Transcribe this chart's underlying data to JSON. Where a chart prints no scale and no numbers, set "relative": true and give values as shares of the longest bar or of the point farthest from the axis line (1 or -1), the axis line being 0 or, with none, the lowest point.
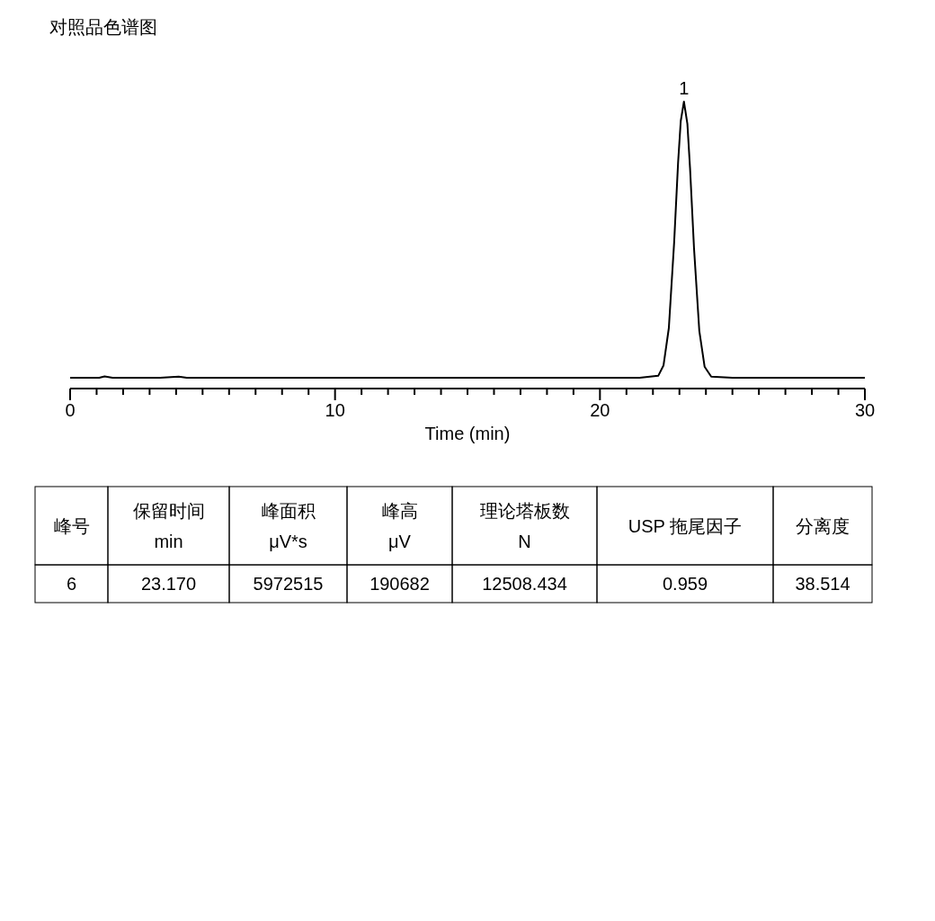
{
  "chart_data": [
    {
      "type": "line",
      "title": "对照品色谱图",
      "xlabel": "Time (min)",
      "relative": true,
      "grid": false,
      "xlim": [
        0,
        30
      ],
      "xticks": [
        0,
        {
          "value": 1,
          "label": null
        },
        {
          "value": 2,
          "label": null
        },
        {
          "value": 3,
          "label": null
        },
        {
          "value": 4,
          "label": null
        },
        {
          "value": 5,
          "label": null
        },
        {
          "value": 6,
          "label": null
        },
        {
          "value": 7,
          "label": null
        },
        {
          "value": 8,
          "label": null
        },
        {
          "value": 9,
          "label": null
        },
        10,
        {
          "value": 11,
          "label": null
        },
        {
          "value": 12,
          "label": null
        },
        {
          "value": 13,
          "label": null
        },
        {
          "value": 14,
          "label": null
        },
        {
          "value": 15,
          "label": null
        },
        {
          "value": 16,
          "label": null
        },
        {
          "value": 17,
          "label": null
        },
        {
          "value": 18,
          "label": null
        },
        {
          "value": 19,
          "label": null
        },
        20,
        {
          "value": 21,
          "label": null
        },
        {
          "value": 22,
          "label": null
        },
        {
          "value": 23,
          "label": null
        },
        {
          "value": 24,
          "label": null
        },
        {
          "value": 25,
          "label": null
        },
        {
          "value": 26,
          "label": null
        },
        {
          "value": 27,
          "label": null
        },
        {
          "value": 28,
          "label": null
        },
        {
          "value": 29,
          "label": null
        },
        30
      ],
      "series": [
        {
          "color": "#000000",
          "x": [
            0,
            1.1,
            1.3,
            1.6,
            3.4,
            4.1,
            4.4,
            15.7,
            21.5,
            22.2,
            22.4,
            22.6,
            22.8,
            22.95,
            23.05,
            23.17,
            23.3,
            23.4,
            23.55,
            23.75,
            23.95,
            24.2,
            25,
            30
          ],
          "values": [
            0,
            0,
            0.005,
            0,
            0,
            0.004,
            0,
            0,
            0,
            0.007,
            0.045,
            0.18,
            0.49,
            0.78,
            0.93,
            1,
            0.92,
            0.76,
            0.47,
            0.17,
            0.04,
            0.004,
            0,
            0
          ]
        }
      ],
      "annotations": [
        {
          "text": "1",
          "x": 23.17,
          "y": 1
        }
      ]
    },
    {
      "type": "other",
      "categories": [
        "峰号",
        "保留时间\nmin",
        "峰面积\nμV*s",
        "峰高\nμV",
        "理论塔板数\nN",
        "USP 拖尾因子",
        "分离度"
      ],
      "annotations": [
        "6",
        "23.170",
        "5972515",
        "190682",
        "12508.434",
        "0.959",
        "38.514"
      ]
    }
  ]
}
